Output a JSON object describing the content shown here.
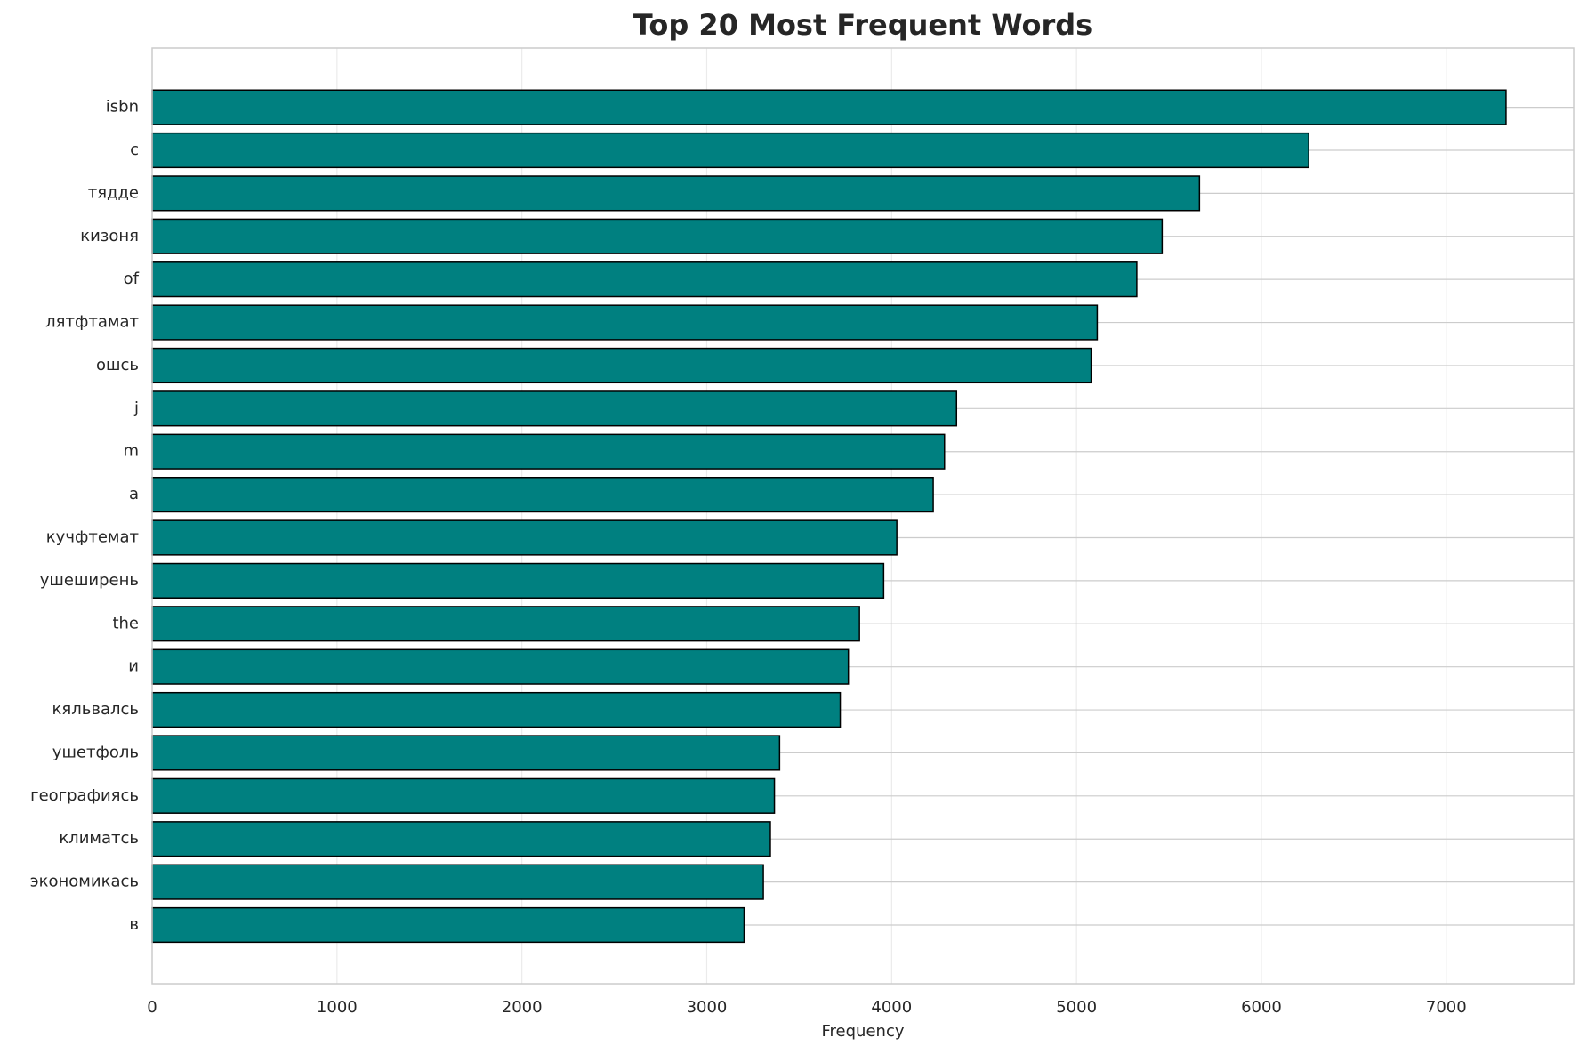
{
  "chart_data": {
    "type": "barh",
    "title": "Top 20 Most Frequent Words",
    "x_label": "Frequency",
    "categories": [
      "isbn",
      "с",
      "тядде",
      "кизоня",
      "of",
      "лятфтамат",
      "ошсь",
      "j",
      "m",
      "a",
      "кучфтемат",
      "ушеширень",
      "the",
      "и",
      "кяльвалсь",
      "ушетфоль",
      "географиясь",
      "климатсь",
      "экономикась",
      "в"
    ],
    "values": [
      7323,
      6256,
      5665,
      5463,
      5326,
      5112,
      5079,
      4351,
      4286,
      4225,
      4028,
      3957,
      3826,
      3766,
      3722,
      3394,
      3366,
      3344,
      3306,
      3202
    ],
    "color": "#008080",
    "edge_color": "#000000",
    "xlim": [
      0,
      7689
    ],
    "xticks": [
      0,
      1000,
      2000,
      3000,
      4000,
      5000,
      6000,
      7000
    ],
    "grid": true
  }
}
